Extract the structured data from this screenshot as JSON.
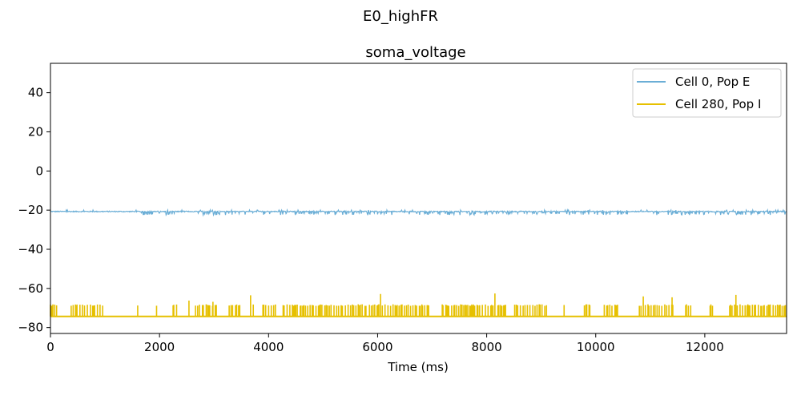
{
  "figure": {
    "suptitle": "E0_highFR"
  },
  "chart_data": {
    "type": "line",
    "title": "soma_voltage",
    "xlabel": "Time (ms)",
    "ylabel": "",
    "xlim": [
      0,
      13500
    ],
    "ylim": [
      -83,
      55
    ],
    "xticks": [
      0,
      2000,
      4000,
      6000,
      8000,
      10000,
      12000
    ],
    "yticks": [
      -80,
      -60,
      -40,
      -20,
      0,
      20,
      40
    ],
    "grid": false,
    "legend_position": "top-right",
    "series": [
      {
        "name": "Cell 0, Pop E",
        "color": "#6baed6",
        "baseline": -20.7,
        "fluctuation_range": [
          -22.5,
          -20.0
        ]
      },
      {
        "name": "Cell 280, Pop I",
        "color": "#e6c000",
        "baseline": -74.3,
        "spike_peak_typical": -68.5,
        "spike_peak_max": -64.5,
        "active_intervals": [
          [
            0,
            150
          ],
          [
            380,
            1000
          ],
          [
            1600,
            5800
          ],
          [
            5850,
            10400
          ],
          [
            10800,
            13500
          ]
        ]
      }
    ]
  }
}
